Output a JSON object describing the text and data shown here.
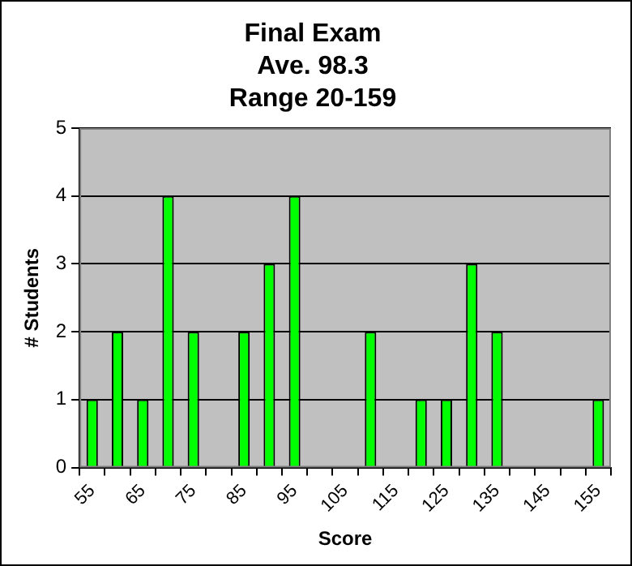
{
  "chart_data": {
    "type": "bar",
    "title": "Final Exam\nAve. 98.3\nRange 20-159",
    "xlabel": "Score",
    "ylabel": "# Students",
    "categories": [
      "55",
      null,
      "65",
      null,
      "75",
      null,
      "85",
      null,
      "95",
      null,
      "105",
      null,
      "115",
      null,
      "125",
      null,
      "135",
      null,
      "145",
      null,
      "155"
    ],
    "values": [
      1,
      2,
      1,
      4,
      2,
      0,
      2,
      3,
      4,
      0,
      0,
      2,
      0,
      1,
      1,
      3,
      2,
      0,
      0,
      0,
      1
    ],
    "color": "#00ff00",
    "ylim": [
      0,
      5
    ],
    "yticks": [
      0,
      1,
      2,
      3,
      4,
      5
    ],
    "grid": "y",
    "legend": false
  }
}
